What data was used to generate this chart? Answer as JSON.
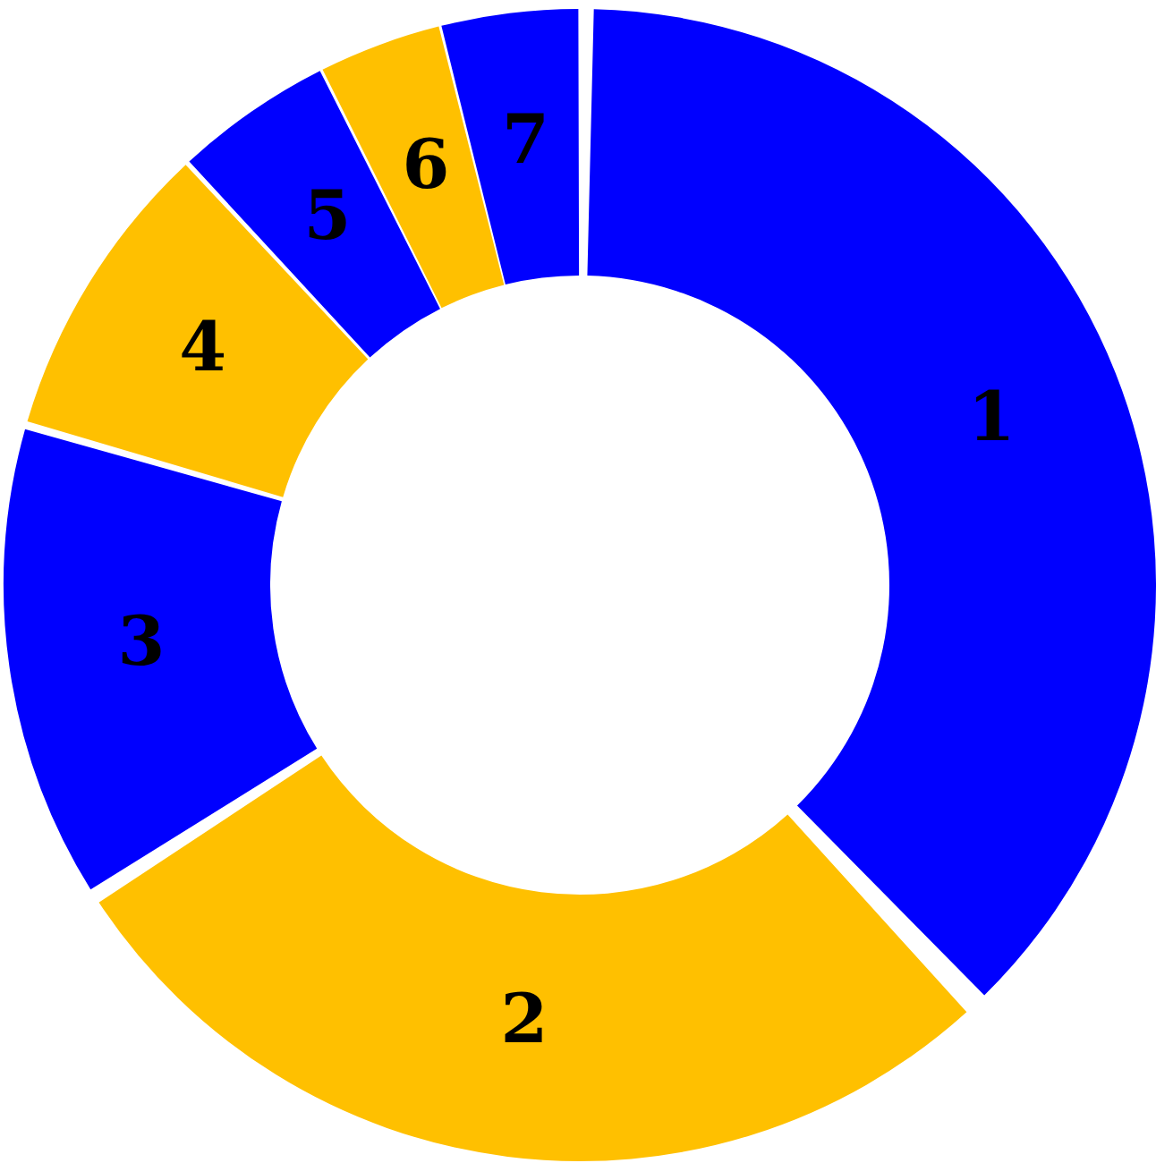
{
  "chart_data": {
    "type": "donut",
    "categories": [
      "1",
      "2",
      "3",
      "4",
      "5",
      "6",
      "7"
    ],
    "values": [
      38,
      28,
      13.5,
      8.6,
      4.5,
      3.5,
      3.9
    ],
    "colors": [
      "#0000ff",
      "#ffc000",
      "#0000ff",
      "#ffc000",
      "#0000ff",
      "#ffc000",
      "#0000ff"
    ],
    "legend": false
  }
}
